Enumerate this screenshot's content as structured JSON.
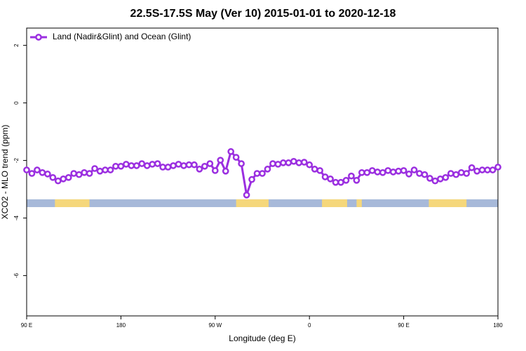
{
  "chart_data": {
    "type": "line",
    "title": "22.5S-17.5S May (Ver 10)   2015-01-01 to 2020-12-18",
    "xlabel": "Longitude (deg E)",
    "ylabel": "XCO2 - MLO trend (ppm)",
    "x": [
      90,
      95,
      100,
      105,
      110,
      115,
      120,
      125,
      130,
      135,
      140,
      145,
      150,
      155,
      160,
      165,
      170,
      175,
      180,
      185,
      190,
      195,
      200,
      205,
      210,
      215,
      220,
      225,
      230,
      235,
      240,
      245,
      250,
      255,
      260,
      265,
      270,
      275,
      280,
      285,
      290,
      295,
      300,
      305,
      310,
      315,
      320,
      325,
      330,
      335,
      340,
      345,
      350,
      355,
      360,
      365,
      370,
      375,
      380,
      385,
      390,
      395,
      400,
      405,
      410,
      415,
      420,
      425,
      430,
      435,
      440,
      445,
      450,
      455,
      460,
      465,
      470,
      475,
      480,
      485,
      490,
      495,
      500,
      505,
      510,
      515,
      520,
      525,
      530,
      535,
      540
    ],
    "series": [
      {
        "name": "Land (Nadir&Glint) and Ocean (Glint)",
        "color": "#9b2fe0",
        "values": [
          -2.33,
          -2.45,
          -2.33,
          -2.42,
          -2.47,
          -2.59,
          -2.71,
          -2.64,
          -2.59,
          -2.45,
          -2.49,
          -2.42,
          -2.45,
          -2.28,
          -2.37,
          -2.33,
          -2.33,
          -2.2,
          -2.2,
          -2.13,
          -2.18,
          -2.18,
          -2.11,
          -2.18,
          -2.13,
          -2.11,
          -2.23,
          -2.23,
          -2.18,
          -2.13,
          -2.18,
          -2.15,
          -2.15,
          -2.3,
          -2.2,
          -2.11,
          -2.35,
          -1.99,
          -2.37,
          -1.69,
          -1.89,
          -2.11,
          -3.2,
          -2.66,
          -2.45,
          -2.45,
          -2.3,
          -2.11,
          -2.13,
          -2.08,
          -2.08,
          -2.03,
          -2.08,
          -2.06,
          -2.15,
          -2.3,
          -2.35,
          -2.57,
          -2.64,
          -2.76,
          -2.76,
          -2.69,
          -2.54,
          -2.69,
          -2.42,
          -2.42,
          -2.35,
          -2.4,
          -2.42,
          -2.35,
          -2.4,
          -2.37,
          -2.35,
          -2.47,
          -2.33,
          -2.45,
          -2.49,
          -2.62,
          -2.71,
          -2.64,
          -2.59,
          -2.45,
          -2.49,
          -2.42,
          -2.45,
          -2.25,
          -2.37,
          -2.33,
          -2.33,
          -2.33,
          -2.23
        ]
      }
    ],
    "xlim": [
      90,
      540
    ],
    "xticks": [
      {
        "value": 90,
        "label": "90 E"
      },
      180,
      {
        "value": 270,
        "label": "90 W"
      },
      {
        "value": 360,
        "label": "0"
      },
      {
        "value": 450,
        "label": "90 E"
      },
      {
        "value": 540,
        "label": "180"
      }
    ],
    "ylim": [
      -7.4,
      2.6
    ],
    "yticks": [
      2,
      0,
      -2,
      -4,
      -6
    ],
    "legend": "top-left",
    "surface": {
      "ylim": [
        -3.35,
        -3.62
      ],
      "ocean_color": "#a7b9d9",
      "land_color": "#f5d77b",
      "land": [
        [
          117,
          150
        ],
        [
          290,
          321
        ],
        [
          372,
          396
        ],
        [
          405,
          410
        ],
        [
          474,
          510
        ]
      ]
    }
  }
}
